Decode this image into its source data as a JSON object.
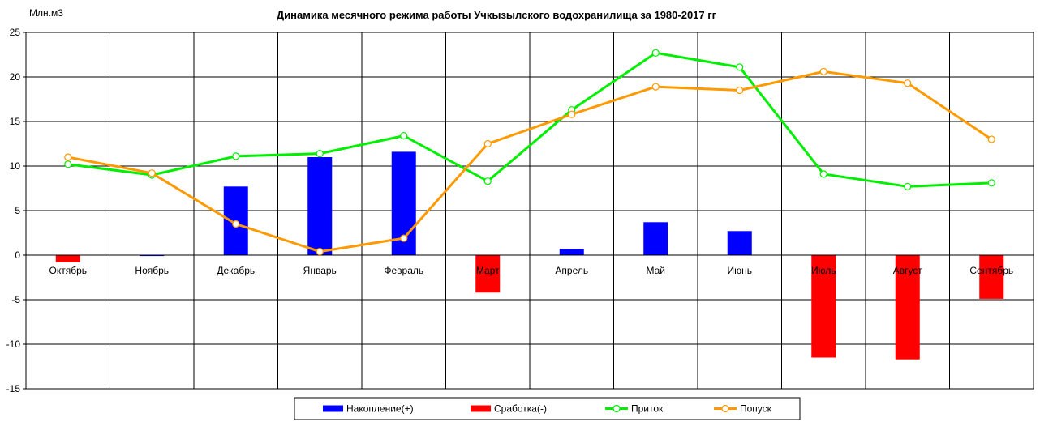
{
  "chart_data": {
    "type": "bar",
    "title": "Динамика месячного режима работы Учкызылского водохранилища за 1980-2017 гг",
    "ylabel": "Млн.м3",
    "xlabel": "",
    "ylim": [
      -15,
      25
    ],
    "yticks": [
      25,
      20,
      15,
      10,
      5,
      0,
      -5,
      -10,
      -15
    ],
    "grid": true,
    "legend_position": "bottom",
    "categories": [
      "Октябрь",
      "Ноябрь",
      "Декабрь",
      "Январь",
      "Февраль",
      "Март",
      "Апрель",
      "Май",
      "Июнь",
      "Июль",
      "Август",
      "Сентябрь"
    ],
    "series": [
      {
        "name": "Накопление(+)",
        "kind": "bar",
        "color": "#0000ff",
        "values": [
          0,
          -0.1,
          7.7,
          11.0,
          11.6,
          0,
          0.7,
          3.7,
          2.7,
          0,
          0,
          0
        ]
      },
      {
        "name": "Сработка(-)",
        "kind": "bar",
        "color": "#ff0000",
        "values": [
          -0.8,
          0,
          0,
          0,
          0,
          -4.2,
          0,
          0,
          0,
          -11.5,
          -11.7,
          -4.9
        ]
      },
      {
        "name": "Приток",
        "kind": "line",
        "color": "#00ee00",
        "values": [
          10.2,
          9.0,
          11.1,
          11.4,
          13.4,
          8.3,
          16.3,
          22.7,
          21.1,
          9.1,
          7.7,
          8.1
        ]
      },
      {
        "name": "Попуск",
        "kind": "line",
        "color": "#ff9900",
        "values": [
          11.0,
          9.2,
          3.5,
          0.4,
          1.9,
          12.5,
          15.8,
          18.9,
          18.5,
          20.6,
          19.3,
          13.0
        ]
      }
    ]
  }
}
